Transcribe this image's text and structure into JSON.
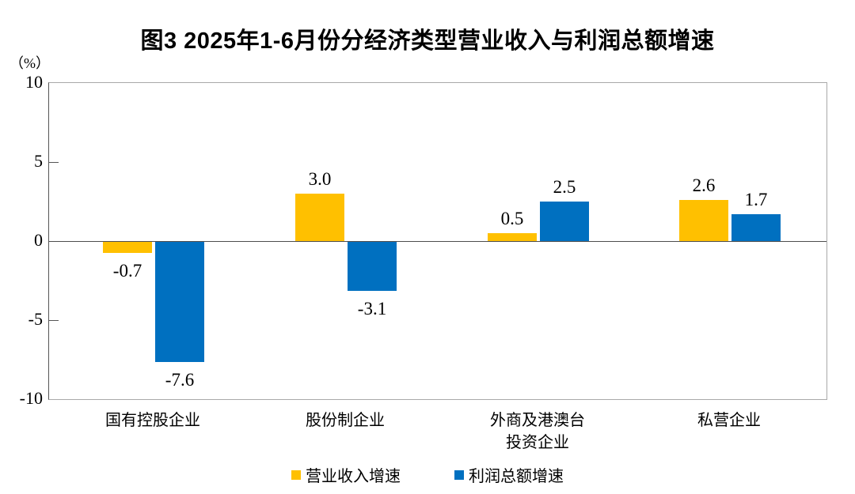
{
  "chart_data": {
    "type": "bar",
    "title": "图3  2025年1-6月份分经济类型营业收入与利润总额增速",
    "ylabel": "（%）",
    "xlabel": "",
    "categories": [
      "国有控股企业",
      "股份制企业",
      "外商及港澳台\n投资企业",
      "私营企业"
    ],
    "series": [
      {
        "name": "营业收入增速",
        "color": "#FFC000",
        "values": [
          -0.7,
          3.0,
          0.5,
          2.6
        ]
      },
      {
        "name": "利润总额增速",
        "color": "#0070C0",
        "values": [
          -7.6,
          -3.1,
          2.5,
          1.7
        ]
      }
    ],
    "value_labels": {
      "营业收入增速": [
        "-0.7",
        "3.0",
        "0.5",
        "2.6"
      ],
      "利润总额增速": [
        "-7.6",
        "-3.1",
        "2.5",
        "1.7"
      ]
    },
    "ylim": [
      -10,
      10
    ],
    "yticks": [
      10,
      5,
      0,
      -5,
      -10
    ],
    "grid": false,
    "legend_position": "bottom"
  }
}
